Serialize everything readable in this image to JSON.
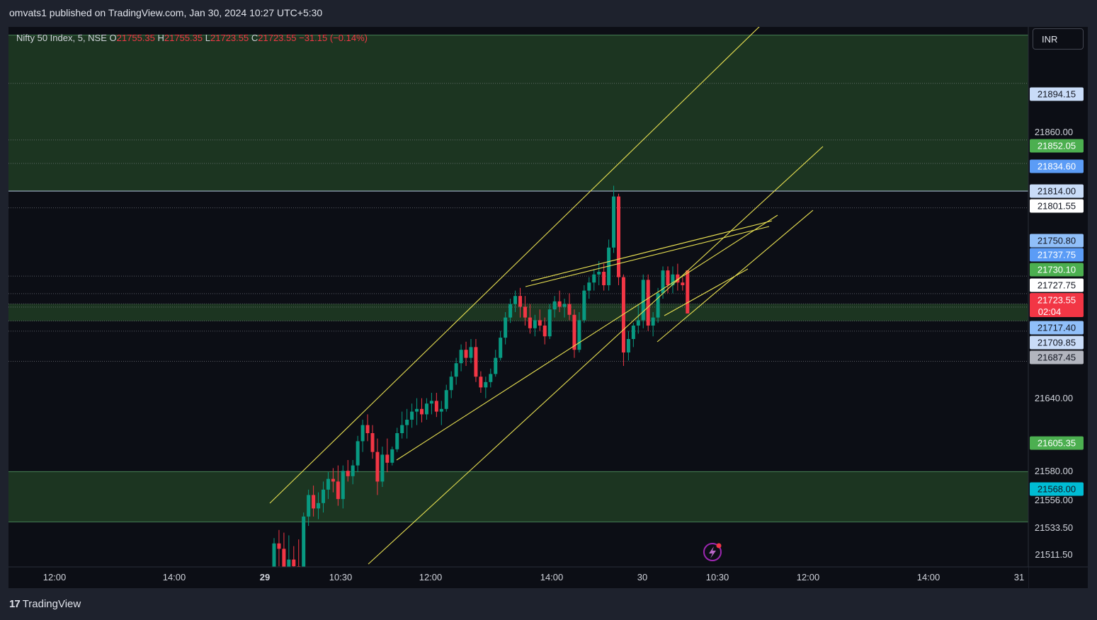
{
  "header": {
    "publisher": "omvats1 published on TradingView.com, Jan 30, 2024 10:27 UTC+5:30"
  },
  "legend": {
    "symbol": "Nifty 50 Index, 5, NSE",
    "o_label": "O",
    "o_value": "21755.35",
    "h_label": "H",
    "h_value": "21755.35",
    "l_label": "L",
    "l_value": "21723.55",
    "c_label": "C",
    "c_value": "21723.55",
    "change": "−31.15 (−0.14%)"
  },
  "currency_button": {
    "label": "INR"
  },
  "footer": {
    "brand": "TradingView"
  },
  "colors": {
    "up": "#089981",
    "down": "#f23645",
    "zone": "#1e3a22",
    "trendline": "#e8e052",
    "background": "#0c0e15"
  },
  "chart_data": {
    "type": "candlestick",
    "title": "Nifty 50 Index, 5, NSE",
    "ylim": [
      21500,
      21950
    ],
    "y_ticks": [
      "21511.50",
      "21533.50",
      "21556.00",
      "21580.00",
      "21640.00",
      "21860.00"
    ],
    "x_ticks": [
      {
        "label": "12:00",
        "bold": false
      },
      {
        "label": "14:00",
        "bold": false
      },
      {
        "label": "29",
        "bold": true
      },
      {
        "label": "10:30",
        "bold": false
      },
      {
        "label": "12:00",
        "bold": false
      },
      {
        "label": "14:00",
        "bold": false
      },
      {
        "label": "30",
        "bold": false
      },
      {
        "label": "10:30",
        "bold": false
      },
      {
        "label": "12:00",
        "bold": false
      },
      {
        "label": "14:00",
        "bold": false
      },
      {
        "label": "31",
        "bold": false
      }
    ],
    "price_labels": [
      {
        "value": "21894.15",
        "bg": "#c9dcf8",
        "fg": "#131722"
      },
      {
        "value": "21852.05",
        "bg": "#4caf50",
        "fg": "#ffffff"
      },
      {
        "value": "21834.60",
        "bg": "#5b9cf6",
        "fg": "#ffffff"
      },
      {
        "value": "21814.00",
        "bg": "#c9dcf8",
        "fg": "#131722"
      },
      {
        "value": "21801.55",
        "bg": "#ffffff",
        "fg": "#131722"
      },
      {
        "value": "21750.80",
        "bg": "#90bff9",
        "fg": "#131722"
      },
      {
        "value": "21737.75",
        "bg": "#5b9cf6",
        "fg": "#ffffff"
      },
      {
        "value": "21730.10",
        "bg": "#4caf50",
        "fg": "#ffffff"
      },
      {
        "value": "21727.75",
        "bg": "#ffffff",
        "fg": "#131722"
      },
      {
        "value": "21723.55",
        "bg": "#f23645",
        "fg": "#ffffff",
        "sub": "02:04"
      },
      {
        "value": "21717.40",
        "bg": "#90bff9",
        "fg": "#131722"
      },
      {
        "value": "21709.85",
        "bg": "#c9dcf8",
        "fg": "#131722"
      },
      {
        "value": "21687.45",
        "bg": "#b2b5be",
        "fg": "#131722"
      },
      {
        "value": "21605.35",
        "bg": "#4caf50",
        "fg": "#ffffff"
      },
      {
        "value": "21568.00",
        "bg": "#00bcd4",
        "fg": "#131722"
      }
    ],
    "zones": [
      {
        "from": 21814.0,
        "to": 21930.0
      },
      {
        "from": 21717.4,
        "to": 21730.1
      },
      {
        "from": 21568.0,
        "to": 21605.35
      }
    ],
    "levels": [
      21930.0,
      21894.15,
      21852.05,
      21834.6,
      21814.0,
      21801.55,
      21750.8,
      21737.75,
      21730.1,
      21727.75,
      21717.4,
      21709.85,
      21687.45,
      21605.35,
      21568.0
    ],
    "candles": [
      [
        21512,
        21556,
        21508,
        21552
      ],
      [
        21552,
        21562,
        21535,
        21548
      ],
      [
        21548,
        21560,
        21522,
        21530
      ],
      [
        21530,
        21558,
        21522,
        21540
      ],
      [
        21540,
        21550,
        21528,
        21535
      ],
      [
        21535,
        21555,
        21525,
        21530
      ],
      [
        21530,
        21575,
        21528,
        21572
      ],
      [
        21572,
        21592,
        21565,
        21588
      ],
      [
        21588,
        21595,
        21572,
        21578
      ],
      [
        21578,
        21590,
        21570,
        21582
      ],
      [
        21582,
        21598,
        21575,
        21592
      ],
      [
        21592,
        21605,
        21585,
        21600
      ],
      [
        21600,
        21608,
        21590,
        21598
      ],
      [
        21598,
        21610,
        21580,
        21585
      ],
      [
        21585,
        21610,
        21578,
        21606
      ],
      [
        21606,
        21614,
        21598,
        21602
      ],
      [
        21602,
        21614,
        21596,
        21610
      ],
      [
        21610,
        21632,
        21605,
        21628
      ],
      [
        21628,
        21644,
        21620,
        21640
      ],
      [
        21640,
        21648,
        21628,
        21634
      ],
      [
        21634,
        21640,
        21615,
        21620
      ],
      [
        21620,
        21630,
        21588,
        21598
      ],
      [
        21598,
        21624,
        21594,
        21618
      ],
      [
        21618,
        21630,
        21605,
        21612
      ],
      [
        21612,
        21624,
        21610,
        21622
      ],
      [
        21622,
        21638,
        21620,
        21634
      ],
      [
        21634,
        21650,
        21630,
        21640
      ],
      [
        21640,
        21652,
        21630,
        21644
      ],
      [
        21644,
        21656,
        21638,
        21650
      ],
      [
        21650,
        21660,
        21640,
        21652
      ],
      [
        21652,
        21660,
        21642,
        21648
      ],
      [
        21648,
        21660,
        21644,
        21656
      ],
      [
        21656,
        21664,
        21648,
        21658
      ],
      [
        21658,
        21664,
        21646,
        21650
      ],
      [
        21650,
        21658,
        21640,
        21652
      ],
      [
        21652,
        21670,
        21650,
        21666
      ],
      [
        21666,
        21680,
        21660,
        21676
      ],
      [
        21676,
        21690,
        21670,
        21686
      ],
      [
        21686,
        21700,
        21680,
        21696
      ],
      [
        21696,
        21702,
        21684,
        21690
      ],
      [
        21690,
        21704,
        21686,
        21698
      ],
      [
        21698,
        21704,
        21672,
        21676
      ],
      [
        21676,
        21680,
        21664,
        21668
      ],
      [
        21668,
        21676,
        21660,
        21672
      ],
      [
        21672,
        21682,
        21668,
        21678
      ],
      [
        21678,
        21696,
        21676,
        21690
      ],
      [
        21690,
        21710,
        21688,
        21705
      ],
      [
        21705,
        21724,
        21700,
        21720
      ],
      [
        21720,
        21734,
        21716,
        21730
      ],
      [
        21730,
        21740,
        21724,
        21736
      ],
      [
        21736,
        21742,
        21720,
        21728
      ],
      [
        21728,
        21736,
        21714,
        21720
      ],
      [
        21720,
        21730,
        21708,
        21712
      ],
      [
        21712,
        21722,
        21706,
        21718
      ],
      [
        21718,
        21726,
        21710,
        21714
      ],
      [
        21714,
        21720,
        21700,
        21706
      ],
      [
        21706,
        21730,
        21704,
        21726
      ],
      [
        21726,
        21736,
        21720,
        21732
      ],
      [
        21732,
        21740,
        21724,
        21728
      ],
      [
        21728,
        21734,
        21720,
        21730
      ],
      [
        21730,
        21738,
        21718,
        21722
      ],
      [
        21722,
        21726,
        21690,
        21696
      ],
      [
        21696,
        21724,
        21694,
        21718
      ],
      [
        21718,
        21744,
        21716,
        21740
      ],
      [
        21740,
        21750,
        21734,
        21746
      ],
      [
        21746,
        21756,
        21740,
        21752
      ],
      [
        21752,
        21762,
        21744,
        21754
      ],
      [
        21754,
        21760,
        21740,
        21744
      ],
      [
        21744,
        21778,
        21740,
        21772
      ],
      [
        21772,
        21818,
        21768,
        21810
      ],
      [
        21810,
        21812,
        21744,
        21750
      ],
      [
        21750,
        21752,
        21684,
        21694
      ],
      [
        21694,
        21710,
        21688,
        21704
      ],
      [
        21704,
        21716,
        21698,
        21714
      ],
      [
        21714,
        21730,
        21708,
        21718
      ],
      [
        21718,
        21752,
        21712,
        21748
      ],
      [
        21748,
        21752,
        21710,
        21714
      ],
      [
        21714,
        21724,
        21706,
        21720
      ],
      [
        21720,
        21742,
        21716,
        21738
      ],
      [
        21738,
        21758,
        21734,
        21755
      ],
      [
        21755,
        21758,
        21738,
        21744
      ],
      [
        21744,
        21758,
        21738,
        21752
      ],
      [
        21752,
        21760,
        21740,
        21746
      ],
      [
        21746,
        21750,
        21740,
        21744
      ],
      [
        21755,
        21755,
        21723,
        21723
      ]
    ],
    "trendlines": [
      [
        [
          381,
          711
        ],
        [
          1076,
          34
        ]
      ],
      [
        [
          520,
          797
        ],
        [
          1162,
          207
        ]
      ],
      [
        [
          560,
          650
        ],
        [
          1098,
          304
        ]
      ],
      [
        [
          750,
          397
        ],
        [
          1090,
          312
        ]
      ],
      [
        [
          742,
          405
        ],
        [
          1086,
          320
        ]
      ],
      [
        [
          928,
          483
        ],
        [
          1148,
          297
        ]
      ],
      [
        [
          938,
          446
        ],
        [
          1056,
          380
        ]
      ]
    ]
  }
}
